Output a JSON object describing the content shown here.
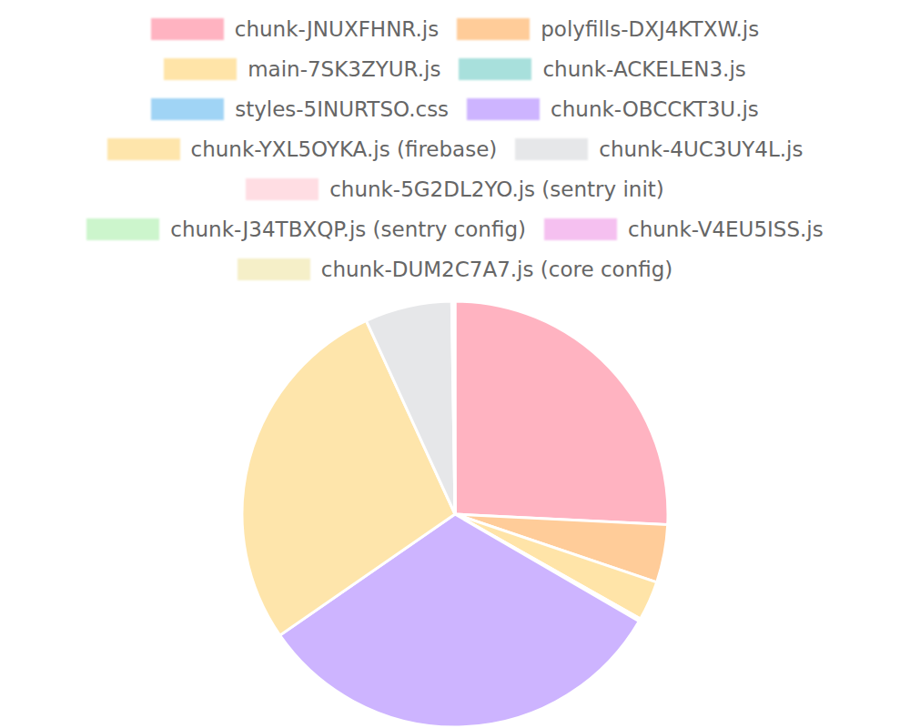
{
  "chart_data": {
    "type": "pie",
    "categories": [
      "chunk-JNUXFHNR.js",
      "polyfills-DXJ4KTXW.js",
      "main-7SK3ZYUR.js",
      "chunk-ACKELEN3.js",
      "styles-5INURTSO.css",
      "chunk-OBCCKT3U.js",
      "chunk-YXL5OYKA.js (firebase)",
      "chunk-4UC3UY4L.js",
      "chunk-5G2DL2YO.js (sentry init)",
      "chunk-J34TBXQP.js (sentry config)",
      "chunk-V4EU5ISS.js",
      "chunk-DUM2C7A7.js (core config)"
    ],
    "values": [
      25.8,
      4.4,
      3.0,
      0.1,
      0.1,
      32.0,
      27.8,
      6.6,
      0.1,
      0.05,
      0.05,
      0.05
    ],
    "colors": [
      "#ffb3c1",
      "#ffcc99",
      "#ffe4a8",
      "#a8e0dc",
      "#a0d4f5",
      "#cdb4ff",
      "#fee5ab",
      "#e6e7e9",
      "#ffdde3",
      "#ccf5cc",
      "#f5c0f0",
      "#f5efc8"
    ],
    "legend": "top"
  }
}
